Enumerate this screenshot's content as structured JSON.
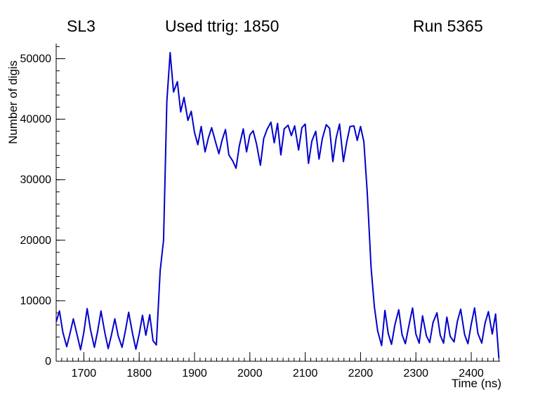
{
  "chart_data": {
    "type": "line",
    "title": "Used ttrig: 1850",
    "annotations": {
      "left": "SL3",
      "center": "Used ttrig: 1850",
      "right": "Run 5365"
    },
    "xlabel": "Time (ns)",
    "ylabel": "Number of digis",
    "xlim": [
      1650,
      2452
    ],
    "ylim": [
      0,
      52500
    ],
    "x_ticks": [
      1700,
      1800,
      1900,
      2000,
      2100,
      2200,
      2300,
      2400
    ],
    "y_ticks": [
      0,
      10000,
      20000,
      30000,
      40000,
      50000
    ],
    "x_minor_step": 10,
    "y_minor_step": 2000,
    "grid": false,
    "legend": "none",
    "line_color": "#0000cc",
    "points": [
      [
        1650,
        6500
      ],
      [
        1656,
        8300
      ],
      [
        1662,
        4800
      ],
      [
        1669,
        2400
      ],
      [
        1675,
        4600
      ],
      [
        1681,
        7000
      ],
      [
        1688,
        4300
      ],
      [
        1694,
        1900
      ],
      [
        1700,
        4800
      ],
      [
        1706,
        8700
      ],
      [
        1712,
        5200
      ],
      [
        1719,
        2300
      ],
      [
        1725,
        5000
      ],
      [
        1731,
        8300
      ],
      [
        1738,
        4700
      ],
      [
        1744,
        2100
      ],
      [
        1750,
        4400
      ],
      [
        1756,
        7000
      ],
      [
        1762,
        4200
      ],
      [
        1769,
        2300
      ],
      [
        1775,
        5000
      ],
      [
        1781,
        8100
      ],
      [
        1788,
        4600
      ],
      [
        1794,
        2000
      ],
      [
        1800,
        4500
      ],
      [
        1806,
        7600
      ],
      [
        1812,
        4300
      ],
      [
        1819,
        7700
      ],
      [
        1825,
        3400
      ],
      [
        1831,
        2700
      ],
      [
        1838,
        15000
      ],
      [
        1844,
        20000
      ],
      [
        1850,
        43000
      ],
      [
        1856,
        51000
      ],
      [
        1862,
        44500
      ],
      [
        1869,
        46200
      ],
      [
        1875,
        41200
      ],
      [
        1881,
        43600
      ],
      [
        1888,
        39800
      ],
      [
        1894,
        41300
      ],
      [
        1900,
        37800
      ],
      [
        1906,
        35800
      ],
      [
        1912,
        38800
      ],
      [
        1919,
        34600
      ],
      [
        1925,
        36900
      ],
      [
        1931,
        38600
      ],
      [
        1938,
        36200
      ],
      [
        1944,
        34300
      ],
      [
        1950,
        36600
      ],
      [
        1956,
        38300
      ],
      [
        1962,
        34100
      ],
      [
        1969,
        33100
      ],
      [
        1975,
        31900
      ],
      [
        1981,
        35600
      ],
      [
        1988,
        38400
      ],
      [
        1994,
        34600
      ],
      [
        2000,
        37400
      ],
      [
        2006,
        38100
      ],
      [
        2012,
        35900
      ],
      [
        2019,
        32400
      ],
      [
        2025,
        36800
      ],
      [
        2031,
        38300
      ],
      [
        2038,
        39500
      ],
      [
        2044,
        36100
      ],
      [
        2050,
        39300
      ],
      [
        2056,
        34100
      ],
      [
        2062,
        38400
      ],
      [
        2069,
        39000
      ],
      [
        2075,
        37300
      ],
      [
        2081,
        38900
      ],
      [
        2088,
        34900
      ],
      [
        2094,
        38600
      ],
      [
        2100,
        39200
      ],
      [
        2106,
        32700
      ],
      [
        2112,
        36400
      ],
      [
        2119,
        38000
      ],
      [
        2125,
        33400
      ],
      [
        2131,
        36800
      ],
      [
        2138,
        39100
      ],
      [
        2144,
        38500
      ],
      [
        2150,
        33000
      ],
      [
        2156,
        36900
      ],
      [
        2162,
        39200
      ],
      [
        2169,
        33000
      ],
      [
        2175,
        36200
      ],
      [
        2181,
        38800
      ],
      [
        2188,
        38900
      ],
      [
        2194,
        36500
      ],
      [
        2200,
        38800
      ],
      [
        2206,
        36300
      ],
      [
        2212,
        28000
      ],
      [
        2219,
        15500
      ],
      [
        2225,
        9000
      ],
      [
        2231,
        5000
      ],
      [
        2238,
        2600
      ],
      [
        2244,
        8400
      ],
      [
        2250,
        4600
      ],
      [
        2256,
        2800
      ],
      [
        2262,
        6000
      ],
      [
        2269,
        8500
      ],
      [
        2275,
        4400
      ],
      [
        2281,
        2900
      ],
      [
        2288,
        6200
      ],
      [
        2294,
        8800
      ],
      [
        2300,
        4500
      ],
      [
        2306,
        3000
      ],
      [
        2312,
        7500
      ],
      [
        2319,
        4200
      ],
      [
        2325,
        3100
      ],
      [
        2331,
        6400
      ],
      [
        2338,
        8000
      ],
      [
        2344,
        4300
      ],
      [
        2350,
        3000
      ],
      [
        2356,
        7300
      ],
      [
        2362,
        4100
      ],
      [
        2369,
        3200
      ],
      [
        2375,
        6600
      ],
      [
        2381,
        8600
      ],
      [
        2388,
        4400
      ],
      [
        2394,
        2900
      ],
      [
        2400,
        6100
      ],
      [
        2406,
        8800
      ],
      [
        2412,
        4600
      ],
      [
        2419,
        3000
      ],
      [
        2425,
        6300
      ],
      [
        2431,
        8200
      ],
      [
        2438,
        4500
      ],
      [
        2444,
        7800
      ],
      [
        2450,
        500
      ]
    ]
  }
}
